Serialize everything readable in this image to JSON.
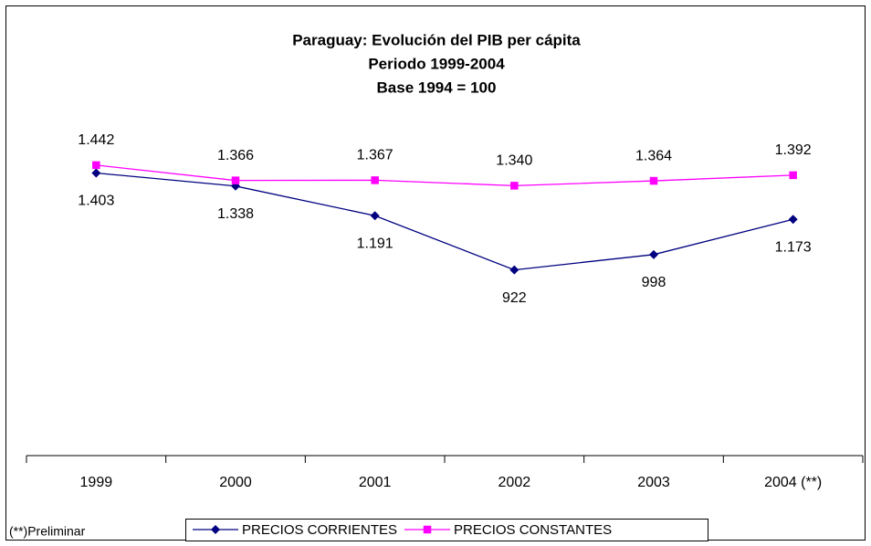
{
  "chart_data": {
    "type": "line",
    "title": [
      "Paraguay: Evolución del PIB per cápita",
      "Periodo 1999-2004",
      "Base 1994 = 100"
    ],
    "categories": [
      "1999",
      "2000",
      "2001",
      "2002",
      "2003",
      "2004 (**)"
    ],
    "series": [
      {
        "name": "PRECIOS CORRIENTES",
        "color": "#000080",
        "marker": "diamond",
        "values": [
          1403,
          1338,
          1191,
          922,
          998,
          1173
        ],
        "value_labels": [
          "1.403",
          "1.338",
          "1.191",
          "922",
          "998",
          "1.173"
        ]
      },
      {
        "name": "PRECIOS CONSTANTES",
        "color": "#ff00ff",
        "marker": "square",
        "values": [
          1442,
          1366,
          1367,
          1340,
          1364,
          1392
        ],
        "value_labels": [
          "1.442",
          "1.366",
          "1.367",
          "1.340",
          "1.364",
          "1.392"
        ]
      }
    ],
    "ylim": [
      0,
      1600
    ],
    "legend": "bottom",
    "footnote": "(**)Preliminar"
  }
}
